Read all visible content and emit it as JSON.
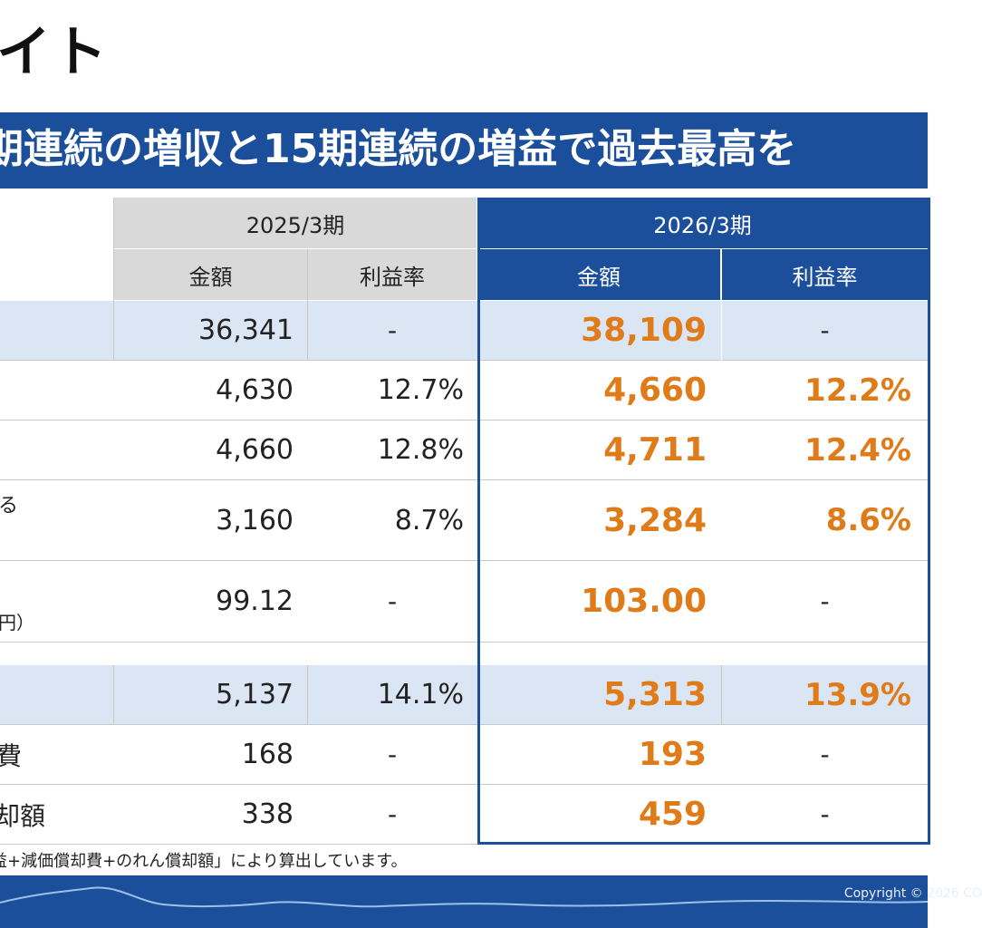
{
  "title": "イト",
  "banner": "期連続の増収と15期連続の増益で過去最高を",
  "headers": {
    "prev_period": "2025/3期",
    "curr_period": "2026/3期",
    "amount": "金額",
    "margin": "利益率"
  },
  "rows": [
    {
      "label": "",
      "prev_amount": "36,341",
      "prev_margin": "-",
      "curr_amount": "38,109",
      "curr_margin": "-"
    },
    {
      "label": "",
      "prev_amount": "4,630",
      "prev_margin": "12.7%",
      "curr_amount": "4,660",
      "curr_margin": "12.2%"
    },
    {
      "label": "",
      "prev_amount": "4,660",
      "prev_margin": "12.8%",
      "curr_amount": "4,711",
      "curr_margin": "12.4%"
    },
    {
      "label": "る",
      "prev_amount": "3,160",
      "prev_margin": "8.7%",
      "curr_amount": "3,284",
      "curr_margin": "8.6%"
    },
    {
      "label": "円）",
      "prev_amount": "99.12",
      "prev_margin": "-",
      "curr_amount": "103.00",
      "curr_margin": "-"
    },
    {
      "label": "",
      "prev_amount": "5,137",
      "prev_margin": "14.1%",
      "curr_amount": "5,313",
      "curr_margin": "13.9%"
    },
    {
      "label": "費",
      "prev_amount": "168",
      "prev_margin": "-",
      "curr_amount": "193",
      "curr_margin": "-"
    },
    {
      "label": "却額",
      "prev_amount": "338",
      "prev_margin": "-",
      "curr_amount": "459",
      "curr_margin": "-"
    }
  ],
  "footnote": "益+減価償却費+のれん償却額」により算出しています。",
  "copyright": "Copyright © 2026 CO",
  "colors": {
    "primary": "#1b4f9c",
    "accent": "#e07b1a",
    "row_highlight": "#dbe6f4",
    "header_gray": "#d9d9d9"
  }
}
